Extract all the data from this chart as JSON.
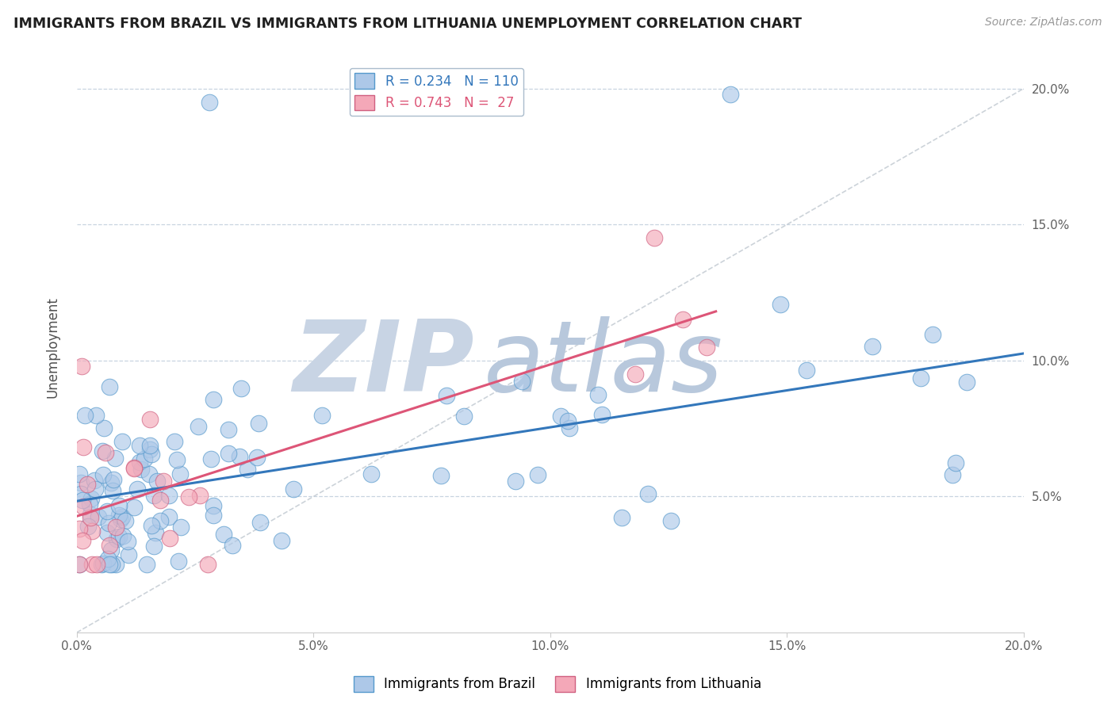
{
  "title": "IMMIGRANTS FROM BRAZIL VS IMMIGRANTS FROM LITHUANIA UNEMPLOYMENT CORRELATION CHART",
  "source": "Source: ZipAtlas.com",
  "ylabel": "Unemployment",
  "xlim": [
    0.0,
    0.2
  ],
  "ylim": [
    0.0,
    0.21
  ],
  "yticks": [
    0.0,
    0.05,
    0.1,
    0.15,
    0.2
  ],
  "xticks": [
    0.0,
    0.05,
    0.1,
    0.15,
    0.2
  ],
  "brazil_color": "#adc8e8",
  "brazil_edge": "#5599cc",
  "lithuania_color": "#f4a8b8",
  "lithuania_edge": "#d06080",
  "brazil_R": 0.234,
  "brazil_N": 110,
  "lithuania_R": 0.743,
  "lithuania_N": 27,
  "legend_R_brazil": "R = 0.234",
  "legend_N_brazil": "N = 110",
  "legend_R_lithuania": "R = 0.743",
  "legend_N_lithuania": "N =  27",
  "watermark_zip": "ZIP",
  "watermark_atlas": "atlas",
  "watermark_color_zip": "#c8d4e4",
  "watermark_color_atlas": "#b8c8dc",
  "background_color": "#ffffff",
  "grid_color": "#c8d4e0",
  "title_color": "#202020",
  "axis_label_color": "#505050",
  "tick_label_color": "#606060",
  "brazil_line_color": "#3377bb",
  "lithuania_line_color": "#dd5577",
  "diag_line_color": "#c0c8d0",
  "brazil_line_intercept": 0.048,
  "brazil_line_slope": 0.24,
  "lithuania_line_intercept": 0.038,
  "lithuania_line_slope": 0.88
}
